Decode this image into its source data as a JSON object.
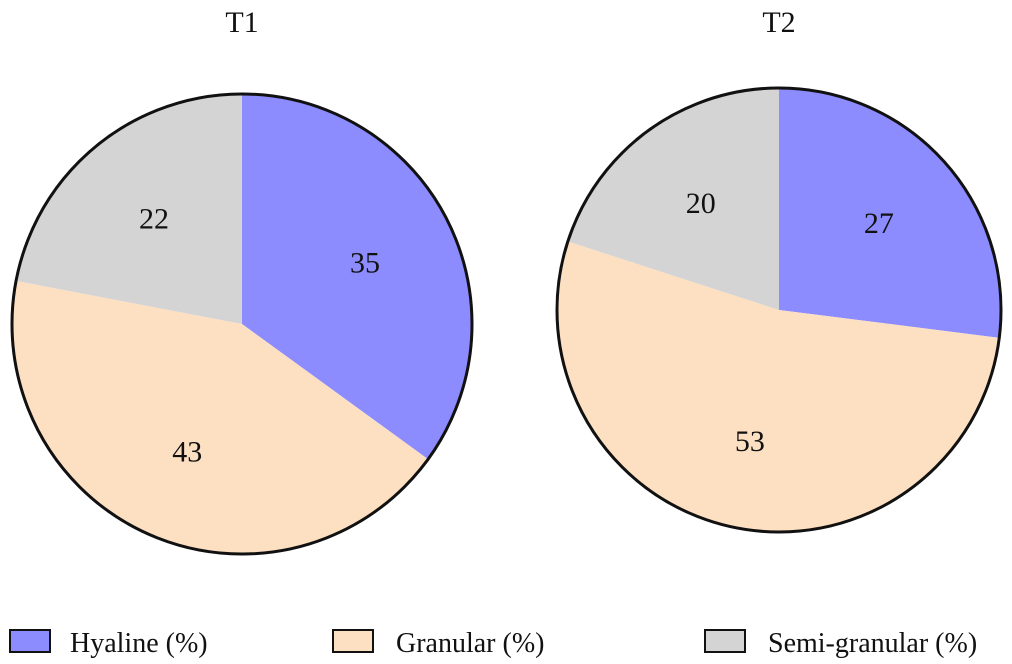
{
  "chart_data": [
    {
      "type": "pie",
      "title": "T1",
      "categories": [
        "Hyaline (%)",
        "Granular (%)",
        "Semi-granular (%)"
      ],
      "values": [
        35,
        43,
        22
      ]
    },
    {
      "type": "pie",
      "title": "T2",
      "categories": [
        "Hyaline (%)",
        "Granular (%)",
        "Semi-granular (%)"
      ],
      "values": [
        27,
        53,
        20
      ]
    }
  ],
  "legend": {
    "placement": "bottom",
    "items": [
      {
        "label": "Hyaline (%)",
        "color": "#8c8cff"
      },
      {
        "label": "Granular (%)",
        "color": "#fddfc2"
      },
      {
        "label": "Semi-granular (%)",
        "color": "#d4d4d4"
      }
    ]
  },
  "colors": {
    "outline": "#111111"
  }
}
